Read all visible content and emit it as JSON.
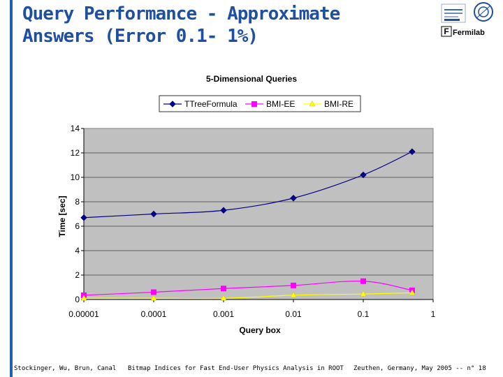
{
  "slide": {
    "title_line1": "Query Performance - Approximate",
    "title_line2": "Answers (Error 0.1- 1%)"
  },
  "logos": {
    "fermilab": "Fermilab",
    "cern": "CERN"
  },
  "footer": {
    "authors": "Stockinger, Wu, Brun, Canal",
    "talk": "Bitmap Indices for Fast End-User Physics Analysis in ROOT",
    "venue": "Zeuthen, Germany, May 2005 -- n° 18"
  },
  "colors": {
    "accent": "#1f4fa0",
    "plot_bg": "#c0c0c0",
    "ttree": "#000080",
    "bmi_ee": "#ff00ff",
    "bmi_re": "#ffff00"
  },
  "chart_data": {
    "type": "line",
    "title": "5-Dimensional Queries",
    "xlabel": "Query box",
    "ylabel": "Time [sec]",
    "x_scale": "log",
    "xlim": [
      1e-05,
      1
    ],
    "ylim": [
      0,
      14
    ],
    "x_ticks": [
      "0.00001",
      "0.0001",
      "0.001",
      "0.01",
      "0.1",
      "1"
    ],
    "y_ticks": [
      "0",
      "2",
      "4",
      "6",
      "8",
      "10",
      "12",
      "14"
    ],
    "grid": true,
    "legend_position": "top",
    "x": [
      1e-05,
      0.0001,
      0.001,
      0.01,
      0.1,
      0.5
    ],
    "series": [
      {
        "name": "TTreeFormula",
        "marker": "diamond",
        "color": "#000080",
        "values": [
          6.7,
          7.0,
          7.3,
          8.3,
          10.2,
          12.1
        ]
      },
      {
        "name": "BMI-EE",
        "marker": "square",
        "color": "#ff00ff",
        "values": [
          0.35,
          0.6,
          0.9,
          1.15,
          1.5,
          0.75
        ]
      },
      {
        "name": "BMI-RE",
        "marker": "triangle",
        "color": "#ffff00",
        "values": [
          0.1,
          0.1,
          0.1,
          0.35,
          0.45,
          0.55
        ]
      }
    ]
  }
}
